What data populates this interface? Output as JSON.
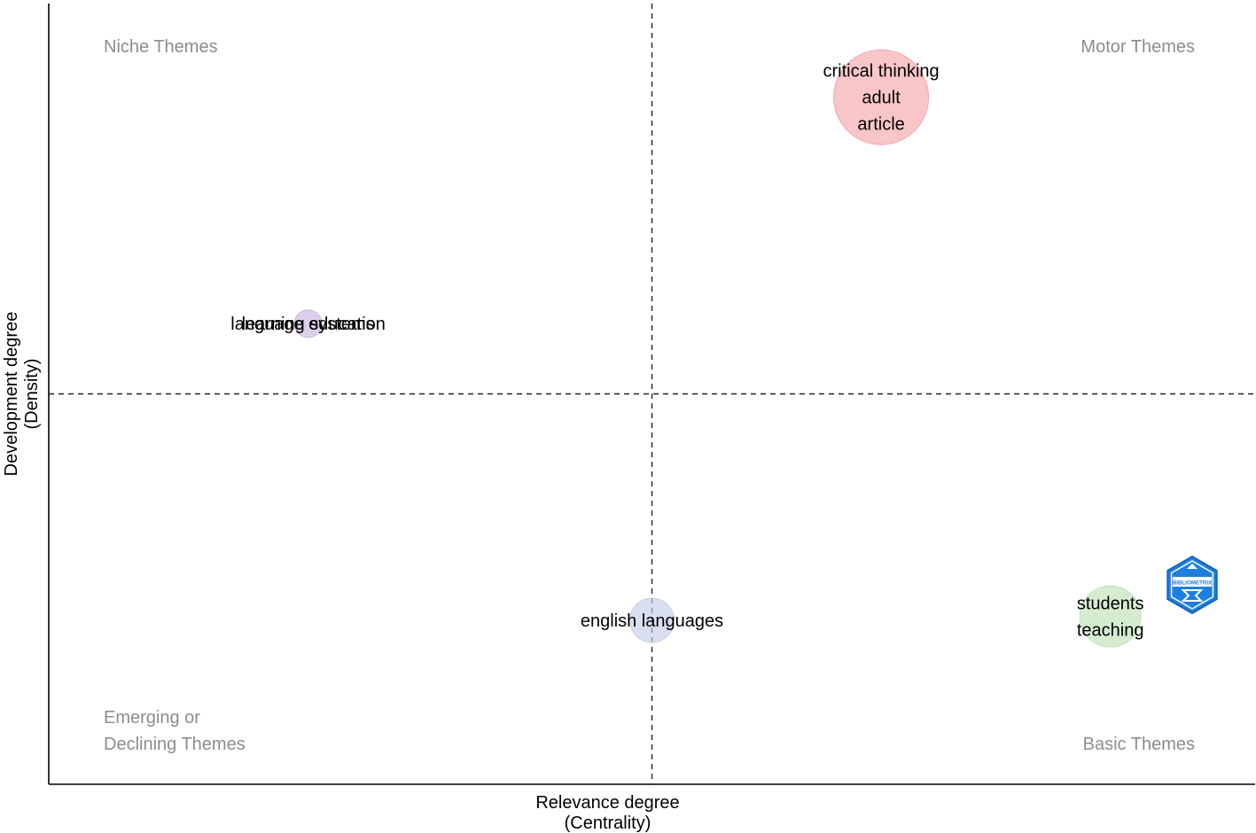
{
  "chart_data": {
    "type": "scatter",
    "title": "",
    "xlabel": [
      "Relevance degree",
      "(Centrality)"
    ],
    "ylabel": [
      "Development degree",
      "(Density)"
    ],
    "quadrants": {
      "top_left": [
        "Niche Themes"
      ],
      "top_right": [
        "Motor Themes"
      ],
      "bottom_left": [
        "Emerging or",
        "Declining Themes"
      ],
      "bottom_right": [
        "Basic Themes"
      ]
    },
    "reference_lines": {
      "x": 0.5,
      "y": 0.5
    },
    "xlim": [
      0,
      1
    ],
    "ylim": [
      0,
      1
    ],
    "grid": false,
    "points": [
      {
        "labels": [
          "critical thinking",
          "adult",
          "article"
        ],
        "x": 0.69,
        "y": 0.88,
        "size": 5,
        "color": "#f4a6ac"
      },
      {
        "labels": [
          "language education",
          "learning systems"
        ],
        "x": 0.215,
        "y": 0.59,
        "size": 1,
        "color": "#c9b5e0"
      },
      {
        "labels": [
          "english languages"
        ],
        "x": 0.5,
        "y": 0.21,
        "size": 2,
        "color": "#c5cce8"
      },
      {
        "labels": [
          "students",
          "teaching"
        ],
        "x": 0.88,
        "y": 0.215,
        "size": 3,
        "color": "#bfe2b8"
      }
    ],
    "logo": {
      "text": "BIBLIOMETRIX",
      "color": "#1e7fe0"
    }
  }
}
